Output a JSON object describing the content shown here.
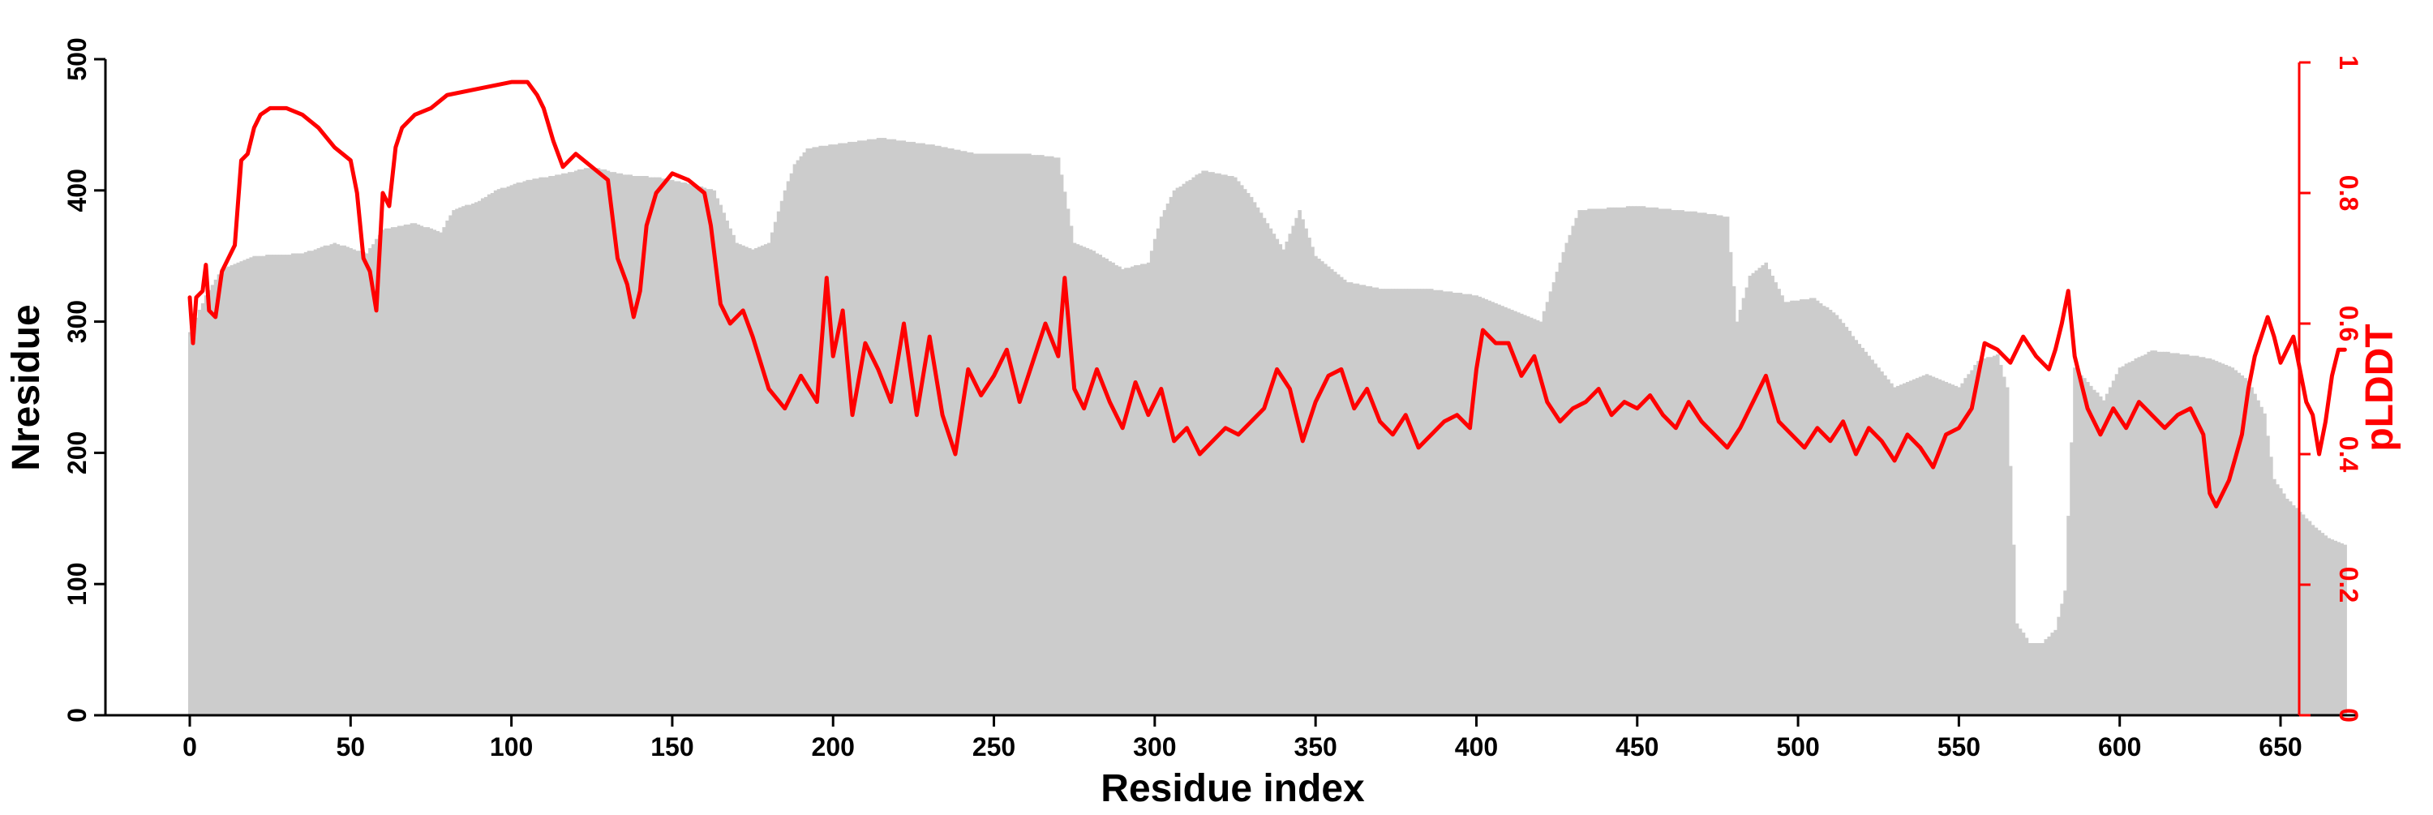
{
  "chart_data": {
    "type": "bar+line",
    "title": "",
    "xlabel": "Residue index",
    "ylabel_left": "Nresidue",
    "ylabel_right": "pLDDT",
    "xlim": [
      -27,
      697
    ],
    "ylim_left": [
      0,
      500
    ],
    "ylim_right": [
      0,
      1
    ],
    "x_ticks": [
      "0",
      "50",
      "100",
      "150",
      "200",
      "250",
      "300",
      "350",
      "400",
      "450",
      "500",
      "550",
      "600",
      "650"
    ],
    "y_ticks_left": [
      "0",
      "100",
      "200",
      "300",
      "400",
      "500"
    ],
    "y_ticks_right": [
      "0",
      "0.2",
      "0.4",
      "0.6",
      "0.8",
      "1"
    ],
    "grid": false,
    "legend": "none",
    "residue_count": 671,
    "series": [
      {
        "name": "Nresidue",
        "kind": "bar",
        "color": "#cccccc",
        "points": [
          [
            0,
            292
          ],
          [
            5,
            320
          ],
          [
            10,
            340
          ],
          [
            20,
            350
          ],
          [
            35,
            352
          ],
          [
            45,
            360
          ],
          [
            55,
            352
          ],
          [
            60,
            370
          ],
          [
            70,
            375
          ],
          [
            78,
            368
          ],
          [
            82,
            385
          ],
          [
            90,
            392
          ],
          [
            95,
            400
          ],
          [
            105,
            408
          ],
          [
            115,
            412
          ],
          [
            125,
            418
          ],
          [
            135,
            412
          ],
          [
            145,
            410
          ],
          [
            155,
            405
          ],
          [
            163,
            400
          ],
          [
            170,
            360
          ],
          [
            175,
            355
          ],
          [
            180,
            360
          ],
          [
            185,
            400
          ],
          [
            188,
            420
          ],
          [
            192,
            432
          ],
          [
            200,
            435
          ],
          [
            215,
            440
          ],
          [
            230,
            435
          ],
          [
            245,
            428
          ],
          [
            260,
            428
          ],
          [
            270,
            425
          ],
          [
            275,
            360
          ],
          [
            280,
            355
          ],
          [
            290,
            340
          ],
          [
            298,
            345
          ],
          [
            302,
            380
          ],
          [
            306,
            400
          ],
          [
            315,
            415
          ],
          [
            325,
            410
          ],
          [
            330,
            395
          ],
          [
            335,
            375
          ],
          [
            340,
            355
          ],
          [
            345,
            385
          ],
          [
            350,
            350
          ],
          [
            355,
            340
          ],
          [
            360,
            330
          ],
          [
            370,
            325
          ],
          [
            385,
            325
          ],
          [
            400,
            320
          ],
          [
            410,
            310
          ],
          [
            420,
            300
          ],
          [
            428,
            360
          ],
          [
            432,
            385
          ],
          [
            450,
            388
          ],
          [
            470,
            383
          ],
          [
            478,
            380
          ],
          [
            481,
            300
          ],
          [
            485,
            335
          ],
          [
            490,
            345
          ],
          [
            496,
            315
          ],
          [
            505,
            318
          ],
          [
            512,
            305
          ],
          [
            520,
            280
          ],
          [
            530,
            250
          ],
          [
            540,
            260
          ],
          [
            550,
            250
          ],
          [
            556,
            270
          ],
          [
            562,
            275
          ],
          [
            565,
            250
          ],
          [
            568,
            70
          ],
          [
            572,
            55
          ],
          [
            576,
            55
          ],
          [
            580,
            65
          ],
          [
            583,
            95
          ],
          [
            586,
            265
          ],
          [
            595,
            240
          ],
          [
            600,
            265
          ],
          [
            610,
            278
          ],
          [
            620,
            275
          ],
          [
            628,
            272
          ],
          [
            635,
            265
          ],
          [
            640,
            255
          ],
          [
            645,
            230
          ],
          [
            648,
            180
          ],
          [
            652,
            165
          ],
          [
            660,
            145
          ],
          [
            665,
            135
          ],
          [
            670,
            130
          ]
        ]
      },
      {
        "name": "pLDDT",
        "kind": "line",
        "color": "#ff0000",
        "axis": "right",
        "points": [
          [
            0,
            0.64
          ],
          [
            1,
            0.57
          ],
          [
            2,
            0.64
          ],
          [
            4,
            0.65
          ],
          [
            5,
            0.69
          ],
          [
            6,
            0.62
          ],
          [
            8,
            0.61
          ],
          [
            10,
            0.68
          ],
          [
            12,
            0.7
          ],
          [
            14,
            0.72
          ],
          [
            16,
            0.85
          ],
          [
            18,
            0.86
          ],
          [
            20,
            0.9
          ],
          [
            22,
            0.92
          ],
          [
            25,
            0.93
          ],
          [
            30,
            0.93
          ],
          [
            35,
            0.92
          ],
          [
            40,
            0.9
          ],
          [
            45,
            0.87
          ],
          [
            50,
            0.85
          ],
          [
            52,
            0.8
          ],
          [
            54,
            0.7
          ],
          [
            56,
            0.68
          ],
          [
            58,
            0.62
          ],
          [
            60,
            0.8
          ],
          [
            62,
            0.78
          ],
          [
            64,
            0.87
          ],
          [
            66,
            0.9
          ],
          [
            70,
            0.92
          ],
          [
            75,
            0.93
          ],
          [
            80,
            0.95
          ],
          [
            90,
            0.96
          ],
          [
            100,
            0.97
          ],
          [
            105,
            0.97
          ],
          [
            108,
            0.95
          ],
          [
            110,
            0.93
          ],
          [
            113,
            0.88
          ],
          [
            116,
            0.84
          ],
          [
            120,
            0.86
          ],
          [
            125,
            0.84
          ],
          [
            130,
            0.82
          ],
          [
            133,
            0.7
          ],
          [
            136,
            0.66
          ],
          [
            138,
            0.61
          ],
          [
            140,
            0.65
          ],
          [
            142,
            0.75
          ],
          [
            145,
            0.8
          ],
          [
            150,
            0.83
          ],
          [
            155,
            0.82
          ],
          [
            160,
            0.8
          ],
          [
            162,
            0.75
          ],
          [
            165,
            0.63
          ],
          [
            168,
            0.6
          ],
          [
            172,
            0.62
          ],
          [
            175,
            0.58
          ],
          [
            180,
            0.5
          ],
          [
            185,
            0.47
          ],
          [
            190,
            0.52
          ],
          [
            195,
            0.48
          ],
          [
            198,
            0.67
          ],
          [
            200,
            0.55
          ],
          [
            203,
            0.62
          ],
          [
            206,
            0.46
          ],
          [
            210,
            0.57
          ],
          [
            214,
            0.53
          ],
          [
            218,
            0.48
          ],
          [
            222,
            0.6
          ],
          [
            226,
            0.46
          ],
          [
            230,
            0.58
          ],
          [
            234,
            0.46
          ],
          [
            238,
            0.4
          ],
          [
            242,
            0.53
          ],
          [
            246,
            0.49
          ],
          [
            250,
            0.52
          ],
          [
            254,
            0.56
          ],
          [
            258,
            0.48
          ],
          [
            262,
            0.54
          ],
          [
            266,
            0.6
          ],
          [
            270,
            0.55
          ],
          [
            272,
            0.67
          ],
          [
            275,
            0.5
          ],
          [
            278,
            0.47
          ],
          [
            282,
            0.53
          ],
          [
            286,
            0.48
          ],
          [
            290,
            0.44
          ],
          [
            294,
            0.51
          ],
          [
            298,
            0.46
          ],
          [
            302,
            0.5
          ],
          [
            306,
            0.42
          ],
          [
            310,
            0.44
          ],
          [
            314,
            0.4
          ],
          [
            318,
            0.42
          ],
          [
            322,
            0.44
          ],
          [
            326,
            0.43
          ],
          [
            330,
            0.45
          ],
          [
            334,
            0.47
          ],
          [
            338,
            0.53
          ],
          [
            342,
            0.5
          ],
          [
            346,
            0.42
          ],
          [
            350,
            0.48
          ],
          [
            354,
            0.52
          ],
          [
            358,
            0.53
          ],
          [
            362,
            0.47
          ],
          [
            366,
            0.5
          ],
          [
            370,
            0.45
          ],
          [
            374,
            0.43
          ],
          [
            378,
            0.46
          ],
          [
            382,
            0.41
          ],
          [
            386,
            0.43
          ],
          [
            390,
            0.45
          ],
          [
            394,
            0.46
          ],
          [
            398,
            0.44
          ],
          [
            400,
            0.53
          ],
          [
            402,
            0.59
          ],
          [
            406,
            0.57
          ],
          [
            410,
            0.57
          ],
          [
            414,
            0.52
          ],
          [
            418,
            0.55
          ],
          [
            422,
            0.48
          ],
          [
            426,
            0.45
          ],
          [
            430,
            0.47
          ],
          [
            434,
            0.48
          ],
          [
            438,
            0.5
          ],
          [
            442,
            0.46
          ],
          [
            446,
            0.48
          ],
          [
            450,
            0.47
          ],
          [
            454,
            0.49
          ],
          [
            458,
            0.46
          ],
          [
            462,
            0.44
          ],
          [
            466,
            0.48
          ],
          [
            470,
            0.45
          ],
          [
            474,
            0.43
          ],
          [
            478,
            0.41
          ],
          [
            482,
            0.44
          ],
          [
            486,
            0.48
          ],
          [
            490,
            0.52
          ],
          [
            494,
            0.45
          ],
          [
            498,
            0.43
          ],
          [
            502,
            0.41
          ],
          [
            506,
            0.44
          ],
          [
            510,
            0.42
          ],
          [
            514,
            0.45
          ],
          [
            518,
            0.4
          ],
          [
            522,
            0.44
          ],
          [
            526,
            0.42
          ],
          [
            530,
            0.39
          ],
          [
            534,
            0.43
          ],
          [
            538,
            0.41
          ],
          [
            542,
            0.38
          ],
          [
            546,
            0.43
          ],
          [
            550,
            0.44
          ],
          [
            554,
            0.47
          ],
          [
            556,
            0.52
          ],
          [
            558,
            0.57
          ],
          [
            562,
            0.56
          ],
          [
            566,
            0.54
          ],
          [
            570,
            0.58
          ],
          [
            574,
            0.55
          ],
          [
            578,
            0.53
          ],
          [
            580,
            0.56
          ],
          [
            582,
            0.6
          ],
          [
            584,
            0.65
          ],
          [
            586,
            0.55
          ],
          [
            590,
            0.47
          ],
          [
            594,
            0.43
          ],
          [
            598,
            0.47
          ],
          [
            602,
            0.44
          ],
          [
            606,
            0.48
          ],
          [
            610,
            0.46
          ],
          [
            614,
            0.44
          ],
          [
            618,
            0.46
          ],
          [
            622,
            0.47
          ],
          [
            626,
            0.43
          ],
          [
            628,
            0.34
          ],
          [
            630,
            0.32
          ],
          [
            634,
            0.36
          ],
          [
            638,
            0.43
          ],
          [
            640,
            0.5
          ],
          [
            642,
            0.55
          ],
          [
            644,
            0.58
          ],
          [
            646,
            0.61
          ],
          [
            648,
            0.58
          ],
          [
            650,
            0.54
          ],
          [
            652,
            0.56
          ],
          [
            654,
            0.58
          ],
          [
            656,
            0.53
          ],
          [
            658,
            0.48
          ],
          [
            660,
            0.46
          ],
          [
            662,
            0.4
          ],
          [
            664,
            0.45
          ],
          [
            666,
            0.52
          ],
          [
            668,
            0.56
          ],
          [
            670,
            0.56
          ]
        ]
      }
    ]
  }
}
